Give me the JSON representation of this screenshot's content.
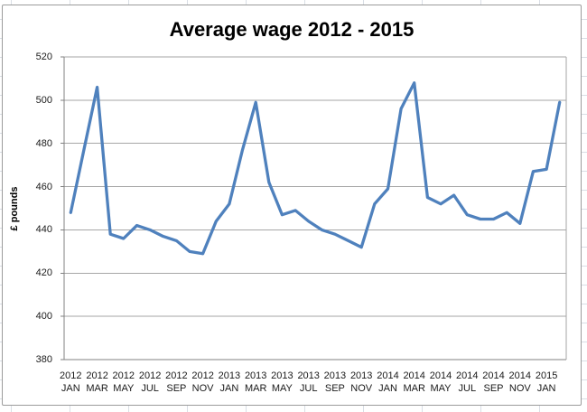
{
  "chart_data": {
    "type": "line",
    "title": "Average wage 2012 - 2015",
    "ylabel": "£ pounds",
    "ylim": [
      380,
      520
    ],
    "yticks": [
      380,
      400,
      420,
      440,
      460,
      480,
      500,
      520
    ],
    "grid": true,
    "legend": "none",
    "label_every": 2,
    "line_color": "#4F81BD",
    "gridline_color": "#a6a6a6",
    "axis_color": "#808080",
    "categories": [
      {
        "year": "2012",
        "month": "JAN"
      },
      {
        "year": "2012",
        "month": "FEB"
      },
      {
        "year": "2012",
        "month": "MAR"
      },
      {
        "year": "2012",
        "month": "APR"
      },
      {
        "year": "2012",
        "month": "MAY"
      },
      {
        "year": "2012",
        "month": "JUN"
      },
      {
        "year": "2012",
        "month": "JUL"
      },
      {
        "year": "2012",
        "month": "AUG"
      },
      {
        "year": "2012",
        "month": "SEP"
      },
      {
        "year": "2012",
        "month": "OCT"
      },
      {
        "year": "2012",
        "month": "NOV"
      },
      {
        "year": "2012",
        "month": "DEC"
      },
      {
        "year": "2013",
        "month": "JAN"
      },
      {
        "year": "2013",
        "month": "FEB"
      },
      {
        "year": "2013",
        "month": "MAR"
      },
      {
        "year": "2013",
        "month": "APR"
      },
      {
        "year": "2013",
        "month": "MAY"
      },
      {
        "year": "2013",
        "month": "JUN"
      },
      {
        "year": "2013",
        "month": "JUL"
      },
      {
        "year": "2013",
        "month": "AUG"
      },
      {
        "year": "2013",
        "month": "SEP"
      },
      {
        "year": "2013",
        "month": "OCT"
      },
      {
        "year": "2013",
        "month": "NOV"
      },
      {
        "year": "2013",
        "month": "DEC"
      },
      {
        "year": "2014",
        "month": "JAN"
      },
      {
        "year": "2014",
        "month": "FEB"
      },
      {
        "year": "2014",
        "month": "MAR"
      },
      {
        "year": "2014",
        "month": "APR"
      },
      {
        "year": "2014",
        "month": "MAY"
      },
      {
        "year": "2014",
        "month": "JUN"
      },
      {
        "year": "2014",
        "month": "JUL"
      },
      {
        "year": "2014",
        "month": "AUG"
      },
      {
        "year": "2014",
        "month": "SEP"
      },
      {
        "year": "2014",
        "month": "OCT"
      },
      {
        "year": "2014",
        "month": "NOV"
      },
      {
        "year": "2014",
        "month": "DEC"
      },
      {
        "year": "2015",
        "month": "JAN"
      },
      {
        "year": "2015",
        "month": "FEB"
      }
    ],
    "values": [
      448,
      477,
      506,
      438,
      436,
      442,
      440,
      437,
      435,
      430,
      429,
      444,
      452,
      477,
      499,
      462,
      447,
      449,
      444,
      440,
      438,
      435,
      432,
      452,
      459,
      496,
      508,
      455,
      452,
      456,
      447,
      445,
      445,
      448,
      443,
      467,
      468,
      499
    ],
    "series": [
      {
        "name": "Average wage",
        "color": "#4F81BD"
      }
    ]
  }
}
